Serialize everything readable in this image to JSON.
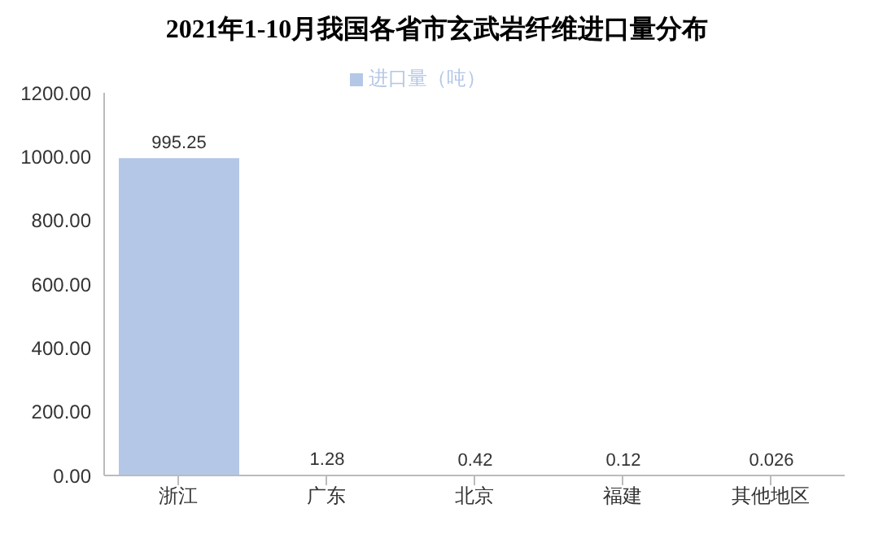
{
  "chart_data": {
    "type": "bar",
    "title": "2021年1-10月我国各省市玄武岩纤维进口量分布",
    "categories": [
      "浙江",
      "广东",
      "北京",
      "福建",
      "其他地区"
    ],
    "series": [
      {
        "name": "进口量（吨）",
        "color": "#b4c7e7",
        "values": [
          995.25,
          1.28,
          0.42,
          0.12,
          0.026
        ]
      }
    ],
    "ylim": [
      0,
      1200
    ],
    "yticks": [
      {
        "value": 0,
        "label": "0.00"
      },
      {
        "value": 200,
        "label": "200.00"
      },
      {
        "value": 400,
        "label": "400.00"
      },
      {
        "value": 600,
        "label": "600.00"
      },
      {
        "value": 800,
        "label": "800.00"
      },
      {
        "value": 1000,
        "label": "1000.00"
      },
      {
        "value": 1200,
        "label": "1200.00"
      }
    ],
    "data_labels": true,
    "legend": "top",
    "grid": false
  }
}
